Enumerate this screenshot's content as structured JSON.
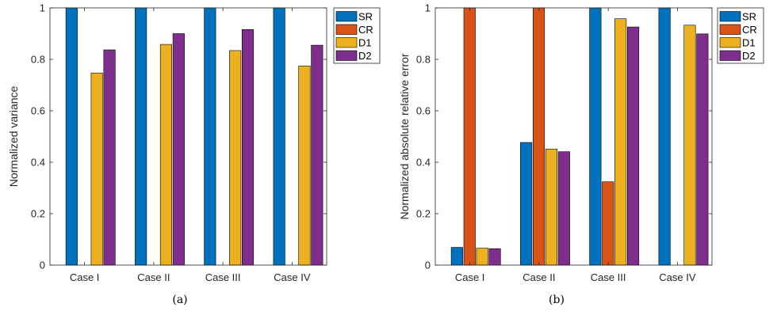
{
  "colors": {
    "SR": "#0072BD",
    "CR": "#D95319",
    "D1": "#EDB120",
    "D2": "#7E2F8E",
    "axis": "#262626"
  },
  "chart_data": [
    {
      "type": "bar",
      "caption": "(a)",
      "title": "",
      "xlabel": "",
      "ylabel": "Normalized variance",
      "ylim": [
        0,
        1
      ],
      "yticks": [
        "0",
        "0.2",
        "0.4",
        "0.6",
        "0.8",
        "1"
      ],
      "categories": [
        "Case I",
        "Case II",
        "Case III",
        "Case IV"
      ],
      "legend_position": "top-right outside",
      "grid": false,
      "series": [
        {
          "name": "SR",
          "values": [
            1.0,
            1.0,
            1.0,
            1.0
          ]
        },
        {
          "name": "CR",
          "values": [
            0,
            0,
            0,
            0
          ]
        },
        {
          "name": "D1",
          "values": [
            0.747,
            0.858,
            0.834,
            0.774
          ]
        },
        {
          "name": "D2",
          "values": [
            0.837,
            0.9,
            0.916,
            0.855
          ]
        }
      ]
    },
    {
      "type": "bar",
      "caption": "(b)",
      "title": "",
      "xlabel": "",
      "ylabel": "Normalized absolute relative error",
      "ylim": [
        0,
        1
      ],
      "yticks": [
        "0",
        "0.2",
        "0.4",
        "0.6",
        "0.8",
        "1"
      ],
      "categories": [
        "Case I",
        "Case II",
        "Case III",
        "Case IV"
      ],
      "legend_position": "top-right outside",
      "grid": false,
      "series": [
        {
          "name": "SR",
          "values": [
            0.069,
            0.477,
            1.0,
            1.0
          ]
        },
        {
          "name": "CR",
          "values": [
            1.0,
            1.0,
            0.324,
            0
          ]
        },
        {
          "name": "D1",
          "values": [
            0.066,
            0.451,
            0.958,
            0.933
          ]
        },
        {
          "name": "D2",
          "values": [
            0.064,
            0.441,
            0.926,
            0.899
          ]
        }
      ]
    }
  ]
}
